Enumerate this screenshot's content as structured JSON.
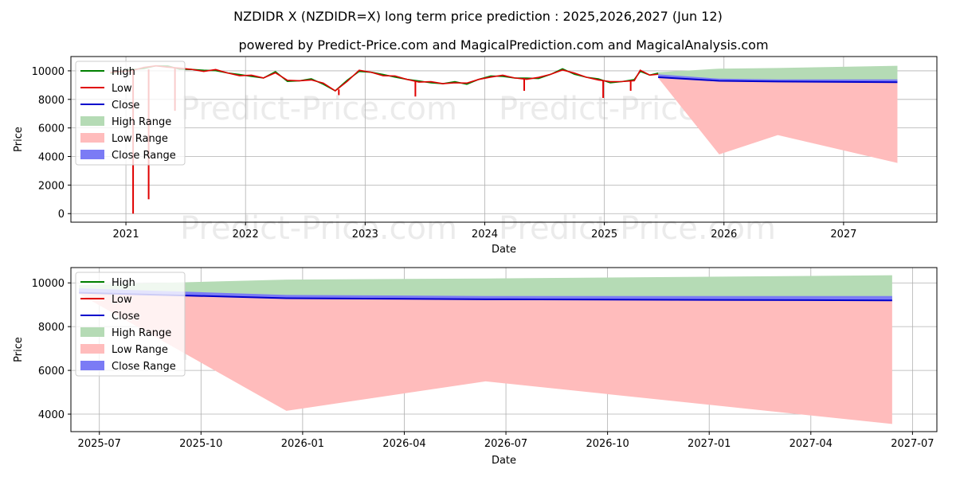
{
  "title": "NZDIDR X (NZDIDR=X) long term price prediction : 2025,2026,2027 (Jun 12)",
  "subtitle": "powered by Predict-Price.com and MagicalPrediction.com and MagicalAnalysis.com",
  "watermark": "Predict-Price.com",
  "colors": {
    "high": "#008000",
    "low": "#e00000",
    "close": "#0000cc",
    "high_range": "#b5dbb5",
    "low_range": "#ffbcbc",
    "close_range": "#7b7bf5",
    "grid": "#b0b0b0"
  },
  "chart_data": [
    {
      "type": "line",
      "name": "historical-and-forecast",
      "xlabel": "Date",
      "ylabel": "Price",
      "xlim": [
        2020.54,
        2027.78
      ],
      "ylim": [
        -600,
        11000
      ],
      "xticks": [
        2021,
        2022,
        2023,
        2024,
        2025,
        2026,
        2027
      ],
      "xtick_labels": [
        "2021",
        "2022",
        "2023",
        "2024",
        "2025",
        "2026",
        "2027"
      ],
      "yticks": [
        0,
        2000,
        4000,
        6000,
        8000,
        10000
      ],
      "ytick_labels": [
        "0",
        "2000",
        "4000",
        "6000",
        "8000",
        "10000"
      ],
      "legend": [
        "High",
        "Low",
        "Close",
        "High Range",
        "Low Range",
        "Close Range"
      ],
      "legend_position": "upper-left",
      "history_close": [
        [
          2020.87,
          9850
        ],
        [
          2020.95,
          9950
        ],
        [
          2021.05,
          10050
        ],
        [
          2021.15,
          10200
        ],
        [
          2021.25,
          10350
        ],
        [
          2021.35,
          10300
        ],
        [
          2021.45,
          10150
        ],
        [
          2021.55,
          10100
        ],
        [
          2021.65,
          10000
        ],
        [
          2021.75,
          10050
        ],
        [
          2021.85,
          9850
        ],
        [
          2021.95,
          9700
        ],
        [
          2022.05,
          9650
        ],
        [
          2022.15,
          9500
        ],
        [
          2022.25,
          9900
        ],
        [
          2022.35,
          9300
        ],
        [
          2022.45,
          9300
        ],
        [
          2022.55,
          9400
        ],
        [
          2022.65,
          9100
        ],
        [
          2022.75,
          8600
        ],
        [
          2022.85,
          9300
        ],
        [
          2022.95,
          10000
        ],
        [
          2023.05,
          9900
        ],
        [
          2023.15,
          9700
        ],
        [
          2023.25,
          9600
        ],
        [
          2023.35,
          9400
        ],
        [
          2023.45,
          9250
        ],
        [
          2023.55,
          9200
        ],
        [
          2023.65,
          9100
        ],
        [
          2023.75,
          9200
        ],
        [
          2023.85,
          9100
        ],
        [
          2023.95,
          9400
        ],
        [
          2024.05,
          9600
        ],
        [
          2024.15,
          9650
        ],
        [
          2024.25,
          9500
        ],
        [
          2024.35,
          9450
        ],
        [
          2024.45,
          9500
        ],
        [
          2024.55,
          9750
        ],
        [
          2024.65,
          10100
        ],
        [
          2024.75,
          9800
        ],
        [
          2024.85,
          9550
        ],
        [
          2024.95,
          9400
        ],
        [
          2025.05,
          9200
        ],
        [
          2025.15,
          9250
        ],
        [
          2025.25,
          9350
        ],
        [
          2025.3,
          10000
        ],
        [
          2025.38,
          9700
        ],
        [
          2025.45,
          9800
        ]
      ],
      "low_spikes": [
        {
          "x": 2021.06,
          "high": 10000,
          "low": 0
        },
        {
          "x": 2021.19,
          "high": 10100,
          "low": 1000
        },
        {
          "x": 2021.41,
          "high": 10200,
          "low": 7200
        },
        {
          "x": 2022.78,
          "high": 8700,
          "low": 8300
        },
        {
          "x": 2023.42,
          "high": 9300,
          "low": 8200
        },
        {
          "x": 2024.33,
          "high": 9500,
          "low": 8600
        },
        {
          "x": 2024.99,
          "high": 9300,
          "low": 8100
        },
        {
          "x": 2025.22,
          "high": 9300,
          "low": 8600
        }
      ],
      "forecast": {
        "x": [
          2025.45,
          2025.96,
          2026.45,
          2027.45
        ],
        "high": [
          9900,
          10150,
          10200,
          10350
        ],
        "low": [
          9500,
          4150,
          5500,
          3550
        ],
        "close": [
          9550,
          9300,
          9250,
          9200
        ],
        "close_range_upper": [
          9750,
          9450,
          9400,
          9400
        ]
      }
    },
    {
      "type": "line",
      "name": "forecast-zoom",
      "xlabel": "Date",
      "ylabel": "Price",
      "xlim": [
        2025.43,
        2027.56
      ],
      "ylim": [
        3200,
        10700
      ],
      "xticks": [
        2025.5,
        2025.75,
        2026.0,
        2026.25,
        2026.5,
        2026.75,
        2027.0,
        2027.25,
        2027.5
      ],
      "xtick_labels": [
        "2025-07",
        "2025-10",
        "2026-01",
        "2026-04",
        "2026-07",
        "2026-10",
        "2027-01",
        "2027-04",
        "2027-07"
      ],
      "yticks": [
        4000,
        6000,
        8000,
        10000
      ],
      "ytick_labels": [
        "4000",
        "6000",
        "8000",
        "10000"
      ],
      "legend": [
        "High",
        "Low",
        "Close",
        "High Range",
        "Low Range",
        "Close Range"
      ],
      "legend_position": "upper-left",
      "forecast": {
        "x": [
          2025.45,
          2025.96,
          2026.45,
          2027.45
        ],
        "high": [
          9900,
          10150,
          10200,
          10350
        ],
        "low": [
          9500,
          4150,
          5500,
          3550
        ],
        "close": [
          9550,
          9300,
          9250,
          9200
        ],
        "close_range_upper": [
          9750,
          9450,
          9400,
          9400
        ]
      }
    }
  ]
}
